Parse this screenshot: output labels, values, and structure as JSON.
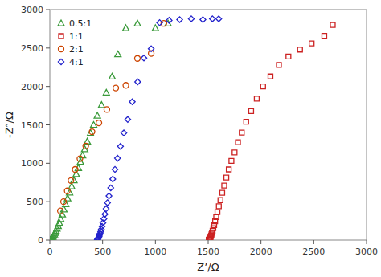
{
  "chart_data": {
    "type": "scatter",
    "xlabel": "Z’/Ω",
    "ylabel": "-Z″/Ω",
    "xlim": [
      0,
      3000
    ],
    "ylim": [
      0,
      3000
    ],
    "xticks": [
      0,
      500,
      1000,
      1500,
      2000,
      2500,
      3000
    ],
    "yticks": [
      0,
      500,
      1000,
      1500,
      2000,
      2500,
      3000
    ],
    "grid": false,
    "legend": "upper-left",
    "series": [
      {
        "name": "0.5:1",
        "color": "#3a9a3a",
        "marker": "triangle",
        "x": [
          5,
          8,
          12,
          16,
          20,
          25,
          30,
          36,
          43,
          50,
          58,
          67,
          78,
          90,
          103,
          118,
          133,
          150,
          168,
          187,
          207,
          228,
          250,
          270,
          290,
          310,
          330,
          355,
          385,
          415,
          450,
          490,
          535,
          590,
          645,
          720,
          830,
          1000,
          1120
        ],
        "values": [
          3,
          6,
          10,
          16,
          24,
          33,
          45,
          60,
          75,
          95,
          120,
          150,
          185,
          225,
          275,
          335,
          400,
          470,
          545,
          620,
          700,
          780,
          860,
          940,
          1020,
          1105,
          1185,
          1285,
          1395,
          1500,
          1620,
          1760,
          1920,
          2130,
          2420,
          2760,
          2820,
          2760,
          2820
        ]
      },
      {
        "name": "1:1",
        "color": "#cc2222",
        "marker": "square",
        "x": [
          1505,
          1508,
          1511,
          1514,
          1517,
          1520,
          1523,
          1527,
          1531,
          1536,
          1542,
          1549,
          1557,
          1566,
          1576,
          1588,
          1601,
          1616,
          1633,
          1652,
          1672,
          1695,
          1720,
          1750,
          1782,
          1818,
          1860,
          1907,
          1960,
          2020,
          2090,
          2170,
          2260,
          2370,
          2480,
          2600,
          2680
        ],
        "values": [
          3,
          6,
          10,
          15,
          22,
          30,
          42,
          56,
          73,
          95,
          120,
          155,
          195,
          245,
          300,
          365,
          440,
          520,
          615,
          710,
          815,
          920,
          1030,
          1140,
          1275,
          1400,
          1540,
          1680,
          1840,
          2000,
          2130,
          2280,
          2390,
          2480,
          2560,
          2660,
          2800
        ]
      },
      {
        "name": "2:1",
        "color": "#cc4400",
        "marker": "circle",
        "x": [
          100,
          130,
          165,
          200,
          240,
          285,
          340,
          400,
          465,
          540,
          625,
          720,
          830,
          960,
          1080
        ],
        "values": [
          380,
          500,
          640,
          775,
          920,
          1060,
          1225,
          1410,
          1525,
          1700,
          1980,
          2015,
          2365,
          2430,
          2820
        ]
      },
      {
        "name": "4:1",
        "color": "#2222cc",
        "marker": "diamond",
        "x": [
          450,
          453,
          456,
          459,
          463,
          467,
          471,
          476,
          482,
          488,
          495,
          503,
          512,
          522,
          533,
          546,
          560,
          577,
          596,
          617,
          641,
          669,
          701,
          738,
          781,
          832,
          891,
          960,
          1040,
          1130,
          1230,
          1340,
          1450,
          1540,
          1600
        ],
        "values": [
          5,
          10,
          16,
          24,
          35,
          48,
          65,
          85,
          110,
          140,
          178,
          225,
          278,
          338,
          407,
          487,
          575,
          680,
          795,
          920,
          1065,
          1220,
          1395,
          1570,
          1800,
          2060,
          2370,
          2490,
          2830,
          2860,
          2870,
          2880,
          2870,
          2880,
          2880
        ]
      }
    ]
  }
}
